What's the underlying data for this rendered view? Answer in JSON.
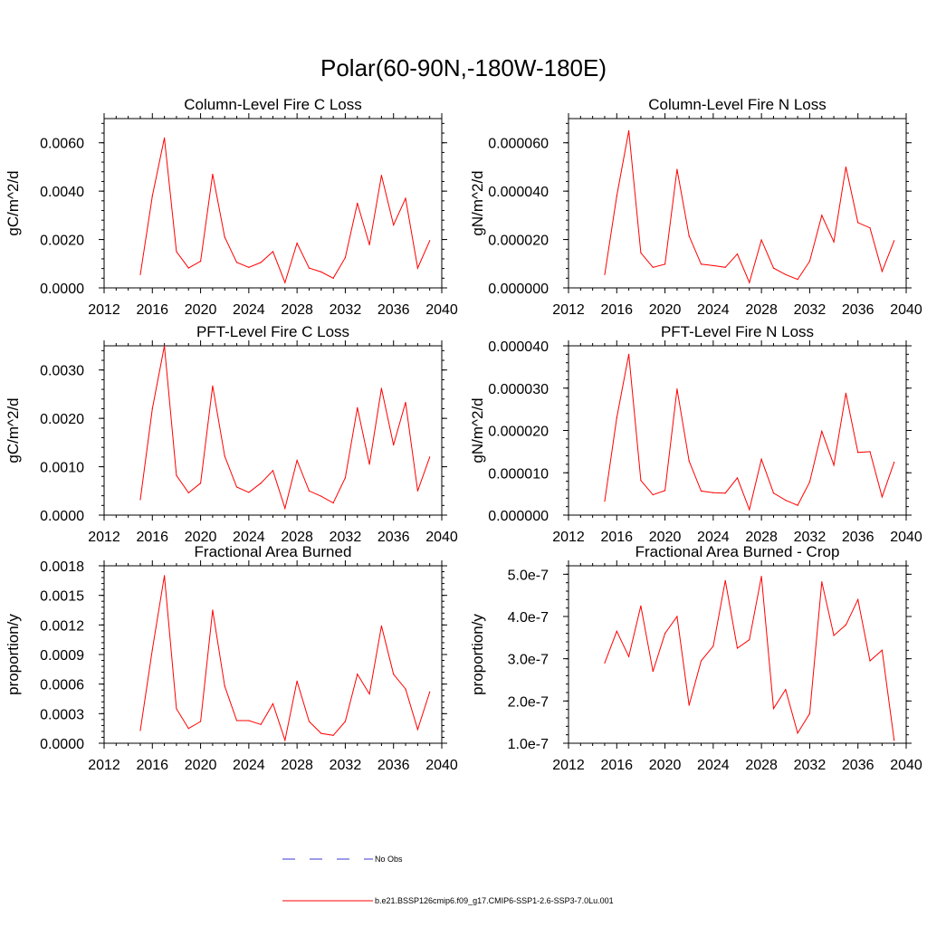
{
  "title": "Polar(60-90N,-180W-180E)",
  "legend": [
    {
      "label": "No Obs",
      "color": "#3a3ad0",
      "style": "dashed"
    },
    {
      "label": "b.e21.BSSP126cmip6.f09_g17.CMIP6-SSP1-2.6-SSP3-7.0Lu.001",
      "color": "#ff0000",
      "style": "solid"
    }
  ],
  "chart_data": [
    {
      "type": "line",
      "title": "Column-Level Fire C Loss",
      "ylabel": "gC/m^2/d",
      "xlim": [
        2012,
        2040
      ],
      "ylim": [
        0,
        0.007
      ],
      "xticks": [
        "2012",
        "2016",
        "2020",
        "2024",
        "2028",
        "2032",
        "2036",
        "2040"
      ],
      "yticks": [
        "0.0000",
        "0.0020",
        "0.0040",
        "0.0060"
      ],
      "ytick_values": [
        0,
        0.002,
        0.004,
        0.006
      ],
      "series": [
        {
          "color": "#ff0000",
          "x": [
            2015,
            2016,
            2017,
            2018,
            2019,
            2020,
            2021,
            2022,
            2023,
            2024,
            2025,
            2026,
            2027,
            2028,
            2029,
            2030,
            2031,
            2032,
            2033,
            2034,
            2035,
            2036,
            2037,
            2038,
            2039
          ],
          "values": [
            0.00055,
            0.0038,
            0.0062,
            0.0015,
            0.00082,
            0.0011,
            0.0047,
            0.0021,
            0.00105,
            0.00085,
            0.00105,
            0.0015,
            0.00022,
            0.00185,
            0.00082,
            0.00066,
            0.0004,
            0.00125,
            0.0035,
            0.00178,
            0.00465,
            0.0026,
            0.0037,
            0.00082,
            0.00195
          ]
        }
      ]
    },
    {
      "type": "line",
      "title": "Column-Level Fire N Loss",
      "ylabel": "gN/m^2/d",
      "xlim": [
        2012,
        2040
      ],
      "ylim": [
        0,
        7e-05
      ],
      "xticks": [
        "2012",
        "2016",
        "2020",
        "2024",
        "2028",
        "2032",
        "2036",
        "2040"
      ],
      "yticks": [
        "0.000000",
        "0.000020",
        "0.000040",
        "0.000060"
      ],
      "ytick_values": [
        0,
        2e-05,
        4e-05,
        6e-05
      ],
      "series": [
        {
          "color": "#ff0000",
          "x": [
            2015,
            2016,
            2017,
            2018,
            2019,
            2020,
            2021,
            2022,
            2023,
            2024,
            2025,
            2026,
            2027,
            2028,
            2029,
            2030,
            2031,
            2032,
            2033,
            2034,
            2035,
            2036,
            2037,
            2038,
            2039
          ],
          "values": [
            5.5e-06,
            3.8e-05,
            6.5e-05,
            1.45e-05,
            8.5e-06,
            9.8e-06,
            4.9e-05,
            2.15e-05,
            9.8e-06,
            9.2e-06,
            8.5e-06,
            1.4e-05,
            2.2e-06,
            1.98e-05,
            8.2e-06,
            5.5e-06,
            3.5e-06,
            1.1e-05,
            3e-05,
            1.9e-05,
            5e-05,
            2.7e-05,
            2.48e-05,
            6.8e-06,
            1.95e-05
          ]
        }
      ]
    },
    {
      "type": "line",
      "title": "PFT-Level Fire C Loss",
      "ylabel": "gC/m^2/d",
      "xlim": [
        2012,
        2040
      ],
      "ylim": [
        0,
        0.0035
      ],
      "xticks": [
        "2012",
        "2016",
        "2020",
        "2024",
        "2028",
        "2032",
        "2036",
        "2040"
      ],
      "yticks": [
        "0.0000",
        "0.0010",
        "0.0020",
        "0.0030"
      ],
      "ytick_values": [
        0,
        0.001,
        0.002,
        0.003
      ],
      "series": [
        {
          "color": "#ff0000",
          "x": [
            2015,
            2016,
            2017,
            2018,
            2019,
            2020,
            2021,
            2022,
            2023,
            2024,
            2025,
            2026,
            2027,
            2028,
            2029,
            2030,
            2031,
            2032,
            2033,
            2034,
            2035,
            2036,
            2037,
            2038,
            2039
          ],
          "values": [
            0.00032,
            0.0022,
            0.0035,
            0.00082,
            0.00046,
            0.00066,
            0.00267,
            0.00122,
            0.00058,
            0.00047,
            0.00066,
            0.00092,
            0.00014,
            0.00113,
            0.0005,
            0.00039,
            0.00025,
            0.00077,
            0.00222,
            0.00105,
            0.00262,
            0.00145,
            0.00233,
            0.0005,
            0.0012
          ]
        }
      ]
    },
    {
      "type": "line",
      "title": "PFT-Level Fire N Loss",
      "ylabel": "gN/m^2/d",
      "xlim": [
        2012,
        2040
      ],
      "ylim": [
        0,
        4e-05
      ],
      "xticks": [
        "2012",
        "2016",
        "2020",
        "2024",
        "2028",
        "2032",
        "2036",
        "2040"
      ],
      "yticks": [
        "0.000000",
        "0.000010",
        "0.000020",
        "0.000030",
        "0.000040"
      ],
      "ytick_values": [
        0,
        1e-05,
        2e-05,
        3e-05,
        4e-05
      ],
      "series": [
        {
          "color": "#ff0000",
          "x": [
            2015,
            2016,
            2017,
            2018,
            2019,
            2020,
            2021,
            2022,
            2023,
            2024,
            2025,
            2026,
            2027,
            2028,
            2029,
            2030,
            2031,
            2032,
            2033,
            2034,
            2035,
            2036,
            2037,
            2038,
            2039
          ],
          "values": [
            3.3e-06,
            2.3e-05,
            3.8e-05,
            8.2e-06,
            4.8e-06,
            5.8e-06,
            2.98e-05,
            1.28e-05,
            5.7e-06,
            5.3e-06,
            5.2e-06,
            8.8e-06,
            1.3e-06,
            1.32e-05,
            5.2e-06,
            3.5e-06,
            2.3e-06,
            7.8e-06,
            1.98e-05,
            1.18e-05,
            2.88e-05,
            1.48e-05,
            1.5e-05,
            4.3e-06,
            1.25e-05
          ]
        }
      ]
    },
    {
      "type": "line",
      "title": "Fractional Area Burned",
      "ylabel": "proportion/y",
      "xlim": [
        2012,
        2040
      ],
      "ylim": [
        0,
        0.0018
      ],
      "xticks": [
        "2012",
        "2016",
        "2020",
        "2024",
        "2028",
        "2032",
        "2036",
        "2040"
      ],
      "yticks": [
        "0.0000",
        "0.0003",
        "0.0006",
        "0.0009",
        "0.0012",
        "0.0015",
        "0.0018"
      ],
      "ytick_values": [
        0,
        0.0003,
        0.0006,
        0.0009,
        0.0012,
        0.0015,
        0.0018
      ],
      "series": [
        {
          "color": "#ff0000",
          "x": [
            2015,
            2016,
            2017,
            2018,
            2019,
            2020,
            2021,
            2022,
            2023,
            2024,
            2025,
            2026,
            2027,
            2028,
            2029,
            2030,
            2031,
            2032,
            2033,
            2034,
            2035,
            2036,
            2037,
            2038,
            2039
          ],
          "values": [
            0.00013,
            0.00095,
            0.0017,
            0.00035,
            0.00015,
            0.00022,
            0.00135,
            0.00058,
            0.00023,
            0.00023,
            0.00019,
            0.0004,
            3e-05,
            0.00063,
            0.00022,
            0.0001,
            8e-05,
            0.00022,
            0.0007,
            0.0005,
            0.00119,
            0.0007,
            0.00055,
            0.00014,
            0.00052
          ]
        }
      ]
    },
    {
      "type": "line",
      "title": "Fractional Area Burned - Crop",
      "ylabel": "proportion/y",
      "xlim": [
        2012,
        2040
      ],
      "ylim": [
        1e-07,
        5.2e-07
      ],
      "xticks": [
        "2012",
        "2016",
        "2020",
        "2024",
        "2028",
        "2032",
        "2036",
        "2040"
      ],
      "yticks": [
        "1.0e-7",
        "2.0e-7",
        "3.0e-7",
        "4.0e-7",
        "5.0e-7"
      ],
      "ytick_values": [
        1e-07,
        2e-07,
        3e-07,
        4e-07,
        5e-07
      ],
      "series": [
        {
          "color": "#ff0000",
          "x": [
            2015,
            2016,
            2017,
            2018,
            2019,
            2020,
            2021,
            2022,
            2023,
            2024,
            2025,
            2026,
            2027,
            2028,
            2029,
            2030,
            2031,
            2032,
            2033,
            2034,
            2035,
            2036,
            2037,
            2038,
            2039
          ],
          "values": [
            2.9e-07,
            3.65e-07,
            3.05e-07,
            4.25e-07,
            2.7e-07,
            3.6e-07,
            4e-07,
            1.9e-07,
            2.95e-07,
            3.3e-07,
            4.85e-07,
            3.25e-07,
            3.45e-07,
            4.95e-07,
            1.82e-07,
            2.27e-07,
            1.24e-07,
            1.7e-07,
            4.82e-07,
            3.55e-07,
            3.8e-07,
            4.4e-07,
            2.95e-07,
            3.2e-07,
            1.07e-07
          ]
        }
      ]
    }
  ]
}
